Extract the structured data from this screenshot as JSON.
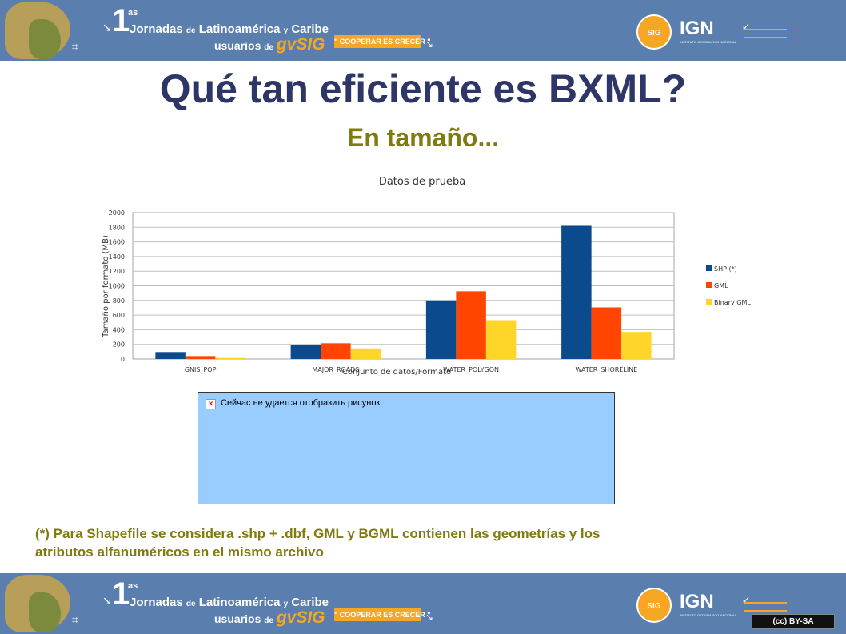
{
  "banner": {
    "number": "1",
    "superscript": "as",
    "line1_a": "Jornadas",
    "line1_de": "de",
    "line1_b": "Latinoamérica",
    "line1_y": "y",
    "line1_c": "Caribe",
    "line2_a": "usuarios",
    "line2_de": "de",
    "line2_brand": "gvSIG",
    "slogan": "\" COOPERAR ES CRECER \"",
    "logo_gvsig": "SIG",
    "logo_ign": "IGN",
    "logo_ign_sub": "INSTITUTO GEOGRAFICO NACIONAL",
    "license": "(cc) BY-SA",
    "accent_color": "#f5a623",
    "background_color": "#5a7fae"
  },
  "slide": {
    "title": "Qué tan eficiente es BXML?",
    "subtitle": "En tamaño...",
    "footnote_line1": "(*) Para Shapefile se considera .shp + .dbf, GML y BGML contienen las geometrías y los",
    "footnote_line2": "atributos alfanuméricos en el mismo archivo"
  },
  "broken_image": {
    "icon": "broken-image-icon",
    "message": "Сейчас не удается отобразить рисунок."
  },
  "chart_data": {
    "type": "bar",
    "title": "Datos de prueba",
    "xlabel": "Conjunto de datos/Formato",
    "ylabel": "Tamaño por formato (MB)",
    "ylim": [
      0,
      2000
    ],
    "yticks": [
      0,
      200,
      400,
      600,
      800,
      1000,
      1200,
      1400,
      1600,
      1800,
      2000
    ],
    "grid": true,
    "legend_position": "right",
    "categories": [
      "GNIS_POP",
      "MAJOR_ROADS",
      "WATER_POLYGON",
      "WATER_SHORELINE"
    ],
    "series": [
      {
        "name": "SHP (*)",
        "color": "#0b4a8c",
        "values": [
          95,
          195,
          800,
          1820
        ]
      },
      {
        "name": "GML",
        "color": "#ff4500",
        "values": [
          40,
          215,
          925,
          705
        ]
      },
      {
        "name": "Binary GML",
        "color": "#ffd52a",
        "values": [
          15,
          145,
          530,
          370
        ]
      }
    ]
  }
}
